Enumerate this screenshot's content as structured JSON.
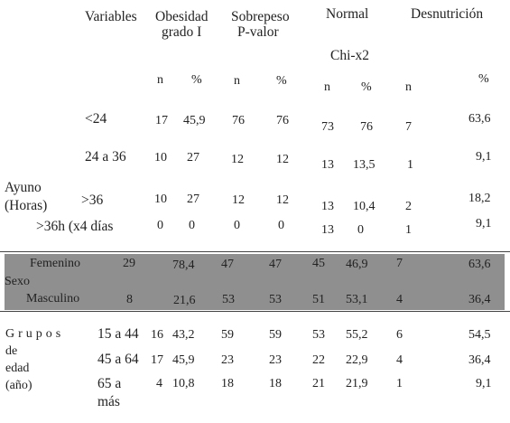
{
  "header": {
    "variables": "Variables",
    "col1_line1": "Obesidad",
    "col1_line2": "grado I",
    "col2_line1": "Sobrepeso",
    "col2_line2": "P-valor",
    "col3": "Normal",
    "col3_sub": "Chi-x2",
    "col4": "Desnutrición",
    "n": "n",
    "pct": "%"
  },
  "ayuno": {
    "label_line1": "Ayuno",
    "label_line2": "(Horas)",
    "rows": [
      {
        "label": "<24",
        "v": [
          "17",
          "45,9",
          "76",
          "76",
          "73",
          "76",
          "7",
          "63,6"
        ]
      },
      {
        "label": "24 a 36",
        "v": [
          "10",
          "27",
          "12",
          "12",
          "13",
          "13,5",
          "1",
          "9,1"
        ]
      },
      {
        "label": ">36",
        "v": [
          "10",
          "27",
          "12",
          "12",
          "13",
          "10,4",
          "2",
          "18,2"
        ]
      },
      {
        "label": ">36h (x4 días",
        "v": [
          "0",
          "0",
          "0",
          "0",
          "13",
          "0",
          "1",
          "9,1"
        ]
      }
    ]
  },
  "sexo": {
    "label": "Sexo",
    "rows": [
      {
        "label": "Femenino",
        "v": [
          "29",
          "78,4",
          "47",
          "47",
          "45",
          "46,9",
          "7",
          "63,6"
        ]
      },
      {
        "label": "Masculino",
        "v": [
          "8",
          "21,6",
          "53",
          "53",
          "51",
          "53,1",
          "4",
          "36,4"
        ]
      }
    ]
  },
  "edad": {
    "label_line1": "Grupos",
    "label_line2": "de",
    "label_line3": "edad",
    "label_line4": "(año)",
    "rows": [
      {
        "label": "15 a 44",
        "v": [
          "16",
          "43,2",
          "59",
          "59",
          "53",
          "55,2",
          "6",
          "54,5"
        ]
      },
      {
        "label": "45 a 64",
        "v": [
          "17",
          "45,9",
          "23",
          "23",
          "22",
          "22,9",
          "4",
          "36,4"
        ]
      },
      {
        "label_line1": "65 a",
        "label_line2": "más",
        "v": [
          "4",
          "10,8",
          "18",
          "18",
          "21",
          "21,9",
          "1",
          "9,1"
        ]
      }
    ]
  }
}
